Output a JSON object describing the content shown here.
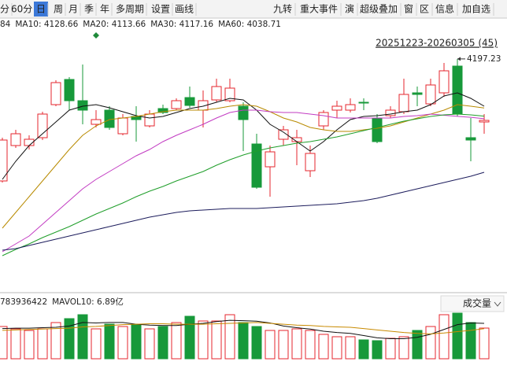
{
  "toolbar": {
    "left": [
      "分",
      "60分",
      "日",
      "周",
      "月",
      "季",
      "年",
      "多周期",
      "设置",
      "画线"
    ],
    "selected": 2,
    "right": [
      "九转",
      "重大事件",
      "演",
      "超级叠加",
      "窗",
      "区",
      "信息",
      "加自选"
    ]
  },
  "chart_data": {
    "type": "candlestick",
    "range_label": "20251223-20260305 (45)",
    "up_color": "#e4262e",
    "down_color": "#17993a",
    "ylim": [
      3872.6,
      4240
    ],
    "open": [
      4026.6,
      4076.1,
      4076.1,
      4087.1,
      4133.3,
      4168.5,
      4138.8,
      4105.8,
      4125.6,
      4092.6,
      4116.8,
      4103.6,
      4127.8,
      4127.8,
      4143.2,
      4125.6,
      4139.9,
      4138.8,
      4131.1,
      4078.3,
      4046.4,
      4084.9,
      4081.6,
      4040.9,
      4103.6,
      4125.6,
      4125.6,
      4136.6,
      4114.6,
      4117.9,
      4123.4,
      4149.8,
      4134.4,
      4149.8,
      4187.2,
      4087.1,
      4109.1
    ],
    "high": [
      4087.1,
      4098.1,
      4090.4,
      4123.4,
      4167.4,
      4171.8,
      4189.4,
      4125.6,
      4131.1,
      4120.1,
      4131.1,
      4125.6,
      4133.3,
      4142.1,
      4158.6,
      4153.1,
      4169.6,
      4169.6,
      4136.6,
      4092.6,
      4076.1,
      4103.6,
      4098.1,
      4076.1,
      4125.6,
      4138.8,
      4142.1,
      4142.1,
      4120.1,
      4131.1,
      4169.6,
      4158.6,
      4169.6,
      4191.6,
      4197.23,
      4114.6,
      4120.1
    ],
    "low": [
      4024.4,
      4072.8,
      4070.6,
      4083.8,
      4131.1,
      4125.6,
      4105.8,
      4101.4,
      4098.1,
      4090.4,
      4081.6,
      4101.4,
      4120.1,
      4125.6,
      4128.9,
      4101.4,
      4136.6,
      4136.6,
      4068.4,
      4015.6,
      4004.6,
      4076.1,
      4048.6,
      4032.1,
      4098.1,
      4114.6,
      4122.3,
      4125.6,
      4079.4,
      4114.6,
      4120.1,
      4131.1,
      4131.1,
      4144.3,
      4116.8,
      4054.1,
      4092.6
    ],
    "close": [
      4083.8,
      4092.6,
      4084.9,
      4120.1,
      4164.1,
      4138.8,
      4125.6,
      4112.4,
      4101.4,
      4114.6,
      4112.4,
      4120.1,
      4122.3,
      4138.8,
      4132.2,
      4138.8,
      4158.6,
      4156.4,
      4112.4,
      4017.8,
      4067.3,
      4098.1,
      4087.1,
      4065.1,
      4122.3,
      4131.1,
      4133.3,
      4135.5,
      4081.6,
      4125.6,
      4147.6,
      4147.6,
      4160.8,
      4180.6,
      4120.1,
      4083.8,
      4111.3
    ],
    "series": [
      {
        "label": "84",
        "color": "#111111",
        "values": [
          4028.8,
          4054.1,
          4076.1,
          4092.6,
          4109.1,
          4125.6,
          4131.1,
          4133.3,
          4128.9,
          4123.4,
          4117.9,
          4114.6,
          4116.8,
          4122.3,
          4127.8,
          4131.1,
          4136.6,
          4142.1,
          4139.9,
          4125.6,
          4105.8,
          4094.8,
          4081.6,
          4068.4,
          4081.6,
          4098.1,
          4112.4,
          4116.8,
          4117.9,
          4120.1,
          4123.4,
          4125.6,
          4133.3,
          4145.4,
          4149.8,
          4142.1,
          4131.1
        ]
      },
      {
        "label": "MA10: 4128.66",
        "color": "#b88a00",
        "values": [
          3960.6,
          3982.6,
          4004.6,
          4026.6,
          4048.6,
          4070.6,
          4090.4,
          4103.6,
          4112.4,
          4114.6,
          4116.8,
          4120.1,
          4123.4,
          4125.6,
          4125.6,
          4125.6,
          4127.8,
          4131.1,
          4133.3,
          4131.1,
          4123.4,
          4114.6,
          4109.1,
          4101.4,
          4098.1,
          4095.9,
          4095.9,
          4098.1,
          4100.3,
          4103.6,
          4109.1,
          4114.6,
          4120.1,
          4125.6,
          4133.3,
          4131.1,
          4128.66
        ]
      },
      {
        "label": "MA20: 4113.66",
        "color": "#c23bc2",
        "values": [
          3927.6,
          3938.6,
          3949.6,
          3966.1,
          3982.6,
          3999.1,
          4015.6,
          4028.8,
          4039.8,
          4050.8,
          4061.8,
          4070.6,
          4081.6,
          4090.4,
          4098.1,
          4105.8,
          4114.6,
          4122.3,
          4125.6,
          4125.6,
          4123.4,
          4122.3,
          4122.3,
          4120.1,
          4117.9,
          4114.6,
          4114.6,
          4114.6,
          4114.6,
          4114.6,
          4116.8,
          4117.9,
          4120.1,
          4118.5,
          4117.0,
          4115.5,
          4113.66
        ]
      },
      {
        "label": "MA30: 4117.16",
        "color": "#1f9e2a",
        "values": [
          3922.1,
          3930.9,
          3938.6,
          3947.4,
          3955.1,
          3962.8,
          3971.6,
          3980.4,
          3988.1,
          3995.8,
          4004.6,
          4012.3,
          4018.9,
          4026.6,
          4033.2,
          4039.8,
          4048.6,
          4056.3,
          4062.9,
          4068.4,
          4072.8,
          4076.1,
          4079.4,
          4081.6,
          4084.9,
          4088.2,
          4092.6,
          4097.0,
          4101.4,
          4105.8,
          4110.2,
          4113.5,
          4116.8,
          4119.0,
          4120.1,
          4119.0,
          4117.16
        ]
      },
      {
        "label": "MA60: 4038.71",
        "color": "#1c1c5c",
        "values": [
          3929.8,
          3932.0,
          3936.4,
          3940.8,
          3945.2,
          3949.6,
          3954.0,
          3958.4,
          3962.8,
          3967.2,
          3971.6,
          3976.0,
          3979.3,
          3982.6,
          3984.8,
          3985.9,
          3987.0,
          3988.1,
          3988.1,
          3988.1,
          3989.2,
          3990.3,
          3991.4,
          3992.5,
          3993.6,
          3994.7,
          3996.9,
          3999.1,
          4002.4,
          4006.8,
          4011.2,
          4015.6,
          4020.0,
          4024.4,
          4028.8,
          4033.2,
          4038.71
        ]
      }
    ],
    "volume": {
      "title": "成交量",
      "ylim": [
        0,
        15.12
      ],
      "values": [
        7.38,
        6.84,
        6.48,
        6.84,
        8.28,
        9.18,
        10.08,
        6.84,
        7.92,
        7.38,
        7.92,
        6.84,
        7.38,
        8.28,
        9.72,
        8.64,
        8.64,
        10.08,
        8.28,
        7.38,
        6.48,
        6.48,
        6.84,
        6.48,
        5.58,
        5.04,
        5.04,
        4.32,
        4.14,
        4.68,
        5.04,
        6.48,
        7.38,
        10.08,
        10.44,
        8.28,
        7.02
      ],
      "series": [
        {
          "label": "783936422",
          "color": "#111111",
          "values": [
            6.9,
            7.0,
            7.0,
            7.1,
            7.2,
            7.5,
            8.3,
            8.2,
            8.3,
            8.3,
            7.9,
            7.7,
            7.6,
            7.6,
            7.9,
            8.1,
            8.5,
            8.8,
            8.7,
            8.6,
            8.2,
            7.5,
            7.1,
            6.8,
            6.3,
            6.0,
            5.8,
            5.3,
            4.8,
            4.6,
            4.6,
            4.9,
            5.6,
            6.7,
            7.8,
            8.2,
            8.1
          ]
        },
        {
          "label": "MAVOL10: 6.89亿",
          "color": "#c88a00",
          "values": [
            6.5,
            6.6,
            6.7,
            6.8,
            6.9,
            7.0,
            7.3,
            7.4,
            7.6,
            7.8,
            7.9,
            8.0,
            8.0,
            7.9,
            7.9,
            7.9,
            8.0,
            8.1,
            8.2,
            8.3,
            8.1,
            7.9,
            7.7,
            7.6,
            7.4,
            7.3,
            7.2,
            6.9,
            6.6,
            6.3,
            6.0,
            5.8,
            5.7,
            5.9,
            6.2,
            6.5,
            6.89
          ]
        }
      ]
    }
  }
}
